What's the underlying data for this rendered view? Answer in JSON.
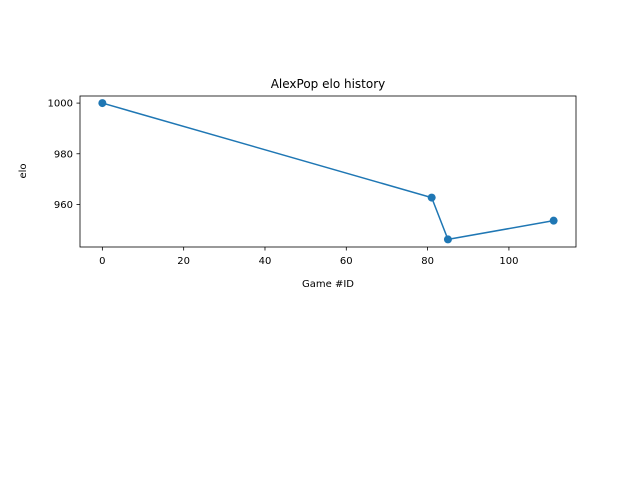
{
  "chart_data": {
    "type": "line",
    "title": "AlexPop elo history",
    "xlabel": "Game #ID",
    "ylabel": "elo",
    "xlim": [
      -5.5,
      116.5
    ],
    "ylim": [
      943.2,
      1002.8
    ],
    "x_ticks": [
      0,
      20,
      40,
      60,
      80,
      100
    ],
    "y_ticks": [
      960,
      980,
      1000
    ],
    "grid": false,
    "legend": "none",
    "series": [
      {
        "color": "#1f77b4",
        "marker": "circle",
        "points": [
          {
            "x": 0,
            "y": 1000
          },
          {
            "x": 81,
            "y": 962.7
          },
          {
            "x": 85,
            "y": 946.2
          },
          {
            "x": 111,
            "y": 953.6
          }
        ]
      }
    ]
  }
}
